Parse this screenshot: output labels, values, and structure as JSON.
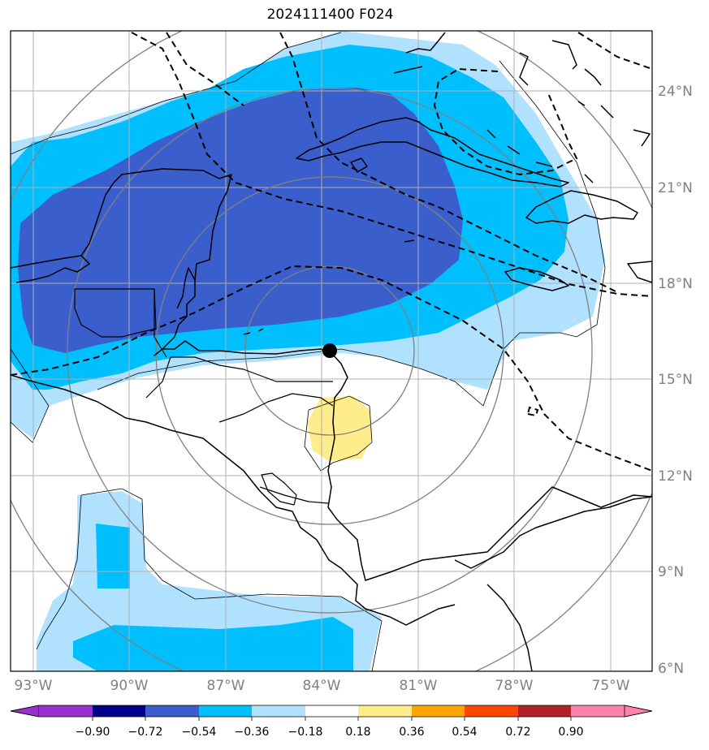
{
  "title": "2024111400 F024",
  "colors": {
    "deep_blue": "#3a5fcd",
    "medium_blue": "#00bfff",
    "light_blue": "#b0e2ff",
    "yellow": "#ffec8b",
    "range_circle": "#808080",
    "gridline": "#b0b0b0",
    "coastline": "#000000",
    "dashed_contour": "#000000",
    "center_marker": "#000000"
  },
  "map": {
    "lat_labels": [
      "24°N",
      "21°N",
      "18°N",
      "15°N",
      "12°N",
      "9°N",
      "6°N"
    ],
    "lon_labels": [
      "93°W",
      "90°W",
      "87°W",
      "84°W",
      "81°W",
      "78°W",
      "75°W"
    ],
    "storm_center": {
      "lat": "15.9°N",
      "lon": "83.7°W"
    },
    "range_rings": 4
  },
  "colorbar": {
    "bins": [
      {
        "color": "#9932cc"
      },
      {
        "color": "#00008b"
      },
      {
        "color": "#3a5fcd"
      },
      {
        "color": "#00bfff"
      },
      {
        "color": "#b0e2ff"
      },
      {
        "color": "#ffffff"
      },
      {
        "color": "#ffec8b"
      },
      {
        "color": "#ffa500"
      },
      {
        "color": "#ff4500"
      },
      {
        "color": "#b22222"
      },
      {
        "color": "#ff82ab"
      }
    ],
    "tick_labels": [
      "−0.90",
      "−0.72",
      "−0.54",
      "−0.36",
      "−0.18",
      "0.18",
      "0.36",
      "0.54",
      "0.72",
      "0.90"
    ]
  }
}
